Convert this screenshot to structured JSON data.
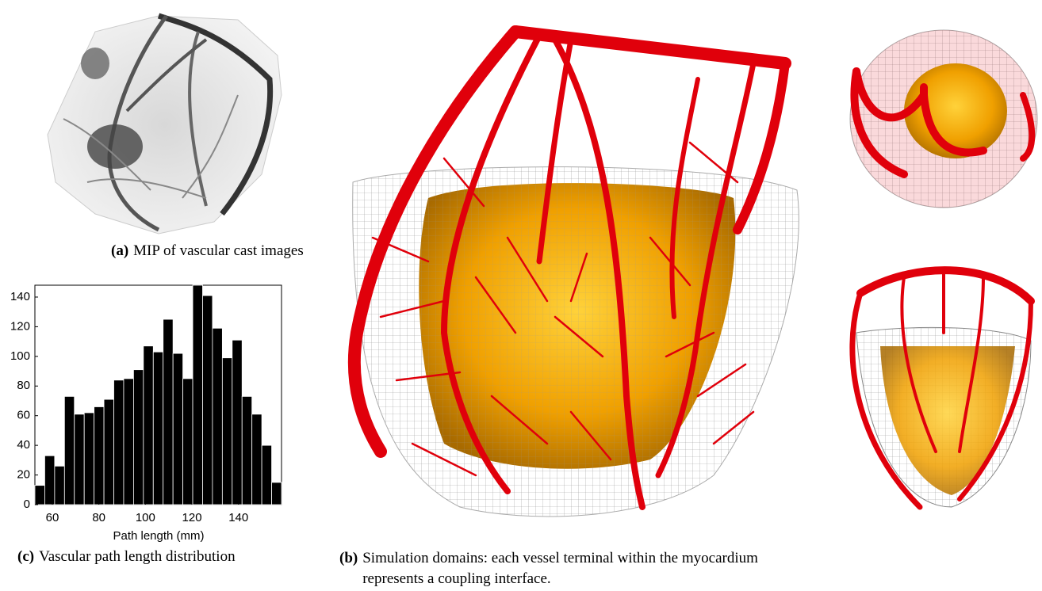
{
  "captions": {
    "a": {
      "label": "(a)",
      "text": "MIP of vascular cast images"
    },
    "b": {
      "label": "(b)",
      "text": "Simulation domains: each vessel terminal within the myocardium represents a coupling interface."
    },
    "c": {
      "label": "(c)",
      "text": "Vascular path length distribution"
    }
  },
  "chart_data": {
    "type": "histogram",
    "xlabel": "Path length (mm)",
    "bins": [
      52.5,
      56.74,
      60.98,
      65.22,
      69.46,
      73.7,
      77.94,
      82.18,
      86.42,
      90.66,
      94.9,
      99.14,
      103.38,
      107.62,
      111.86,
      116.1,
      120.34,
      124.58,
      128.82,
      133.06,
      137.3,
      141.54,
      145.78,
      150.02,
      154.26,
      158.5
    ],
    "values": [
      13,
      33,
      26,
      73,
      61,
      62,
      66,
      71,
      84,
      85,
      91,
      107,
      103,
      125,
      102,
      85,
      148,
      141,
      119,
      99,
      111,
      73,
      61,
      40,
      15
    ],
    "color": "#000000",
    "xlim": [
      52.5,
      158.5
    ],
    "xticks": [
      60,
      80,
      100,
      120,
      140
    ],
    "ylim": [
      0,
      148
    ],
    "yticks": [
      0,
      20,
      40,
      60,
      80,
      100,
      120,
      140
    ]
  }
}
